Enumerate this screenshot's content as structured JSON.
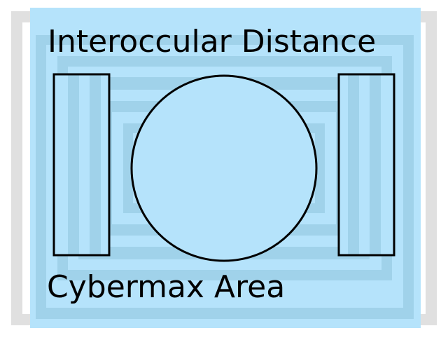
{
  "screen": {
    "title_top": "Interoccular Distance",
    "title_bottom": "Cybermax Area"
  },
  "colors": {
    "frame_gray": "#e0e0e0",
    "light_blue": "#b5e3fb",
    "mid_blue": "#a0d2ea",
    "stroke": "#000000"
  },
  "icons": {
    "center_circle": "circle-target-icon",
    "left_bar": "left-bar-icon",
    "right_bar": "right-bar-icon"
  }
}
